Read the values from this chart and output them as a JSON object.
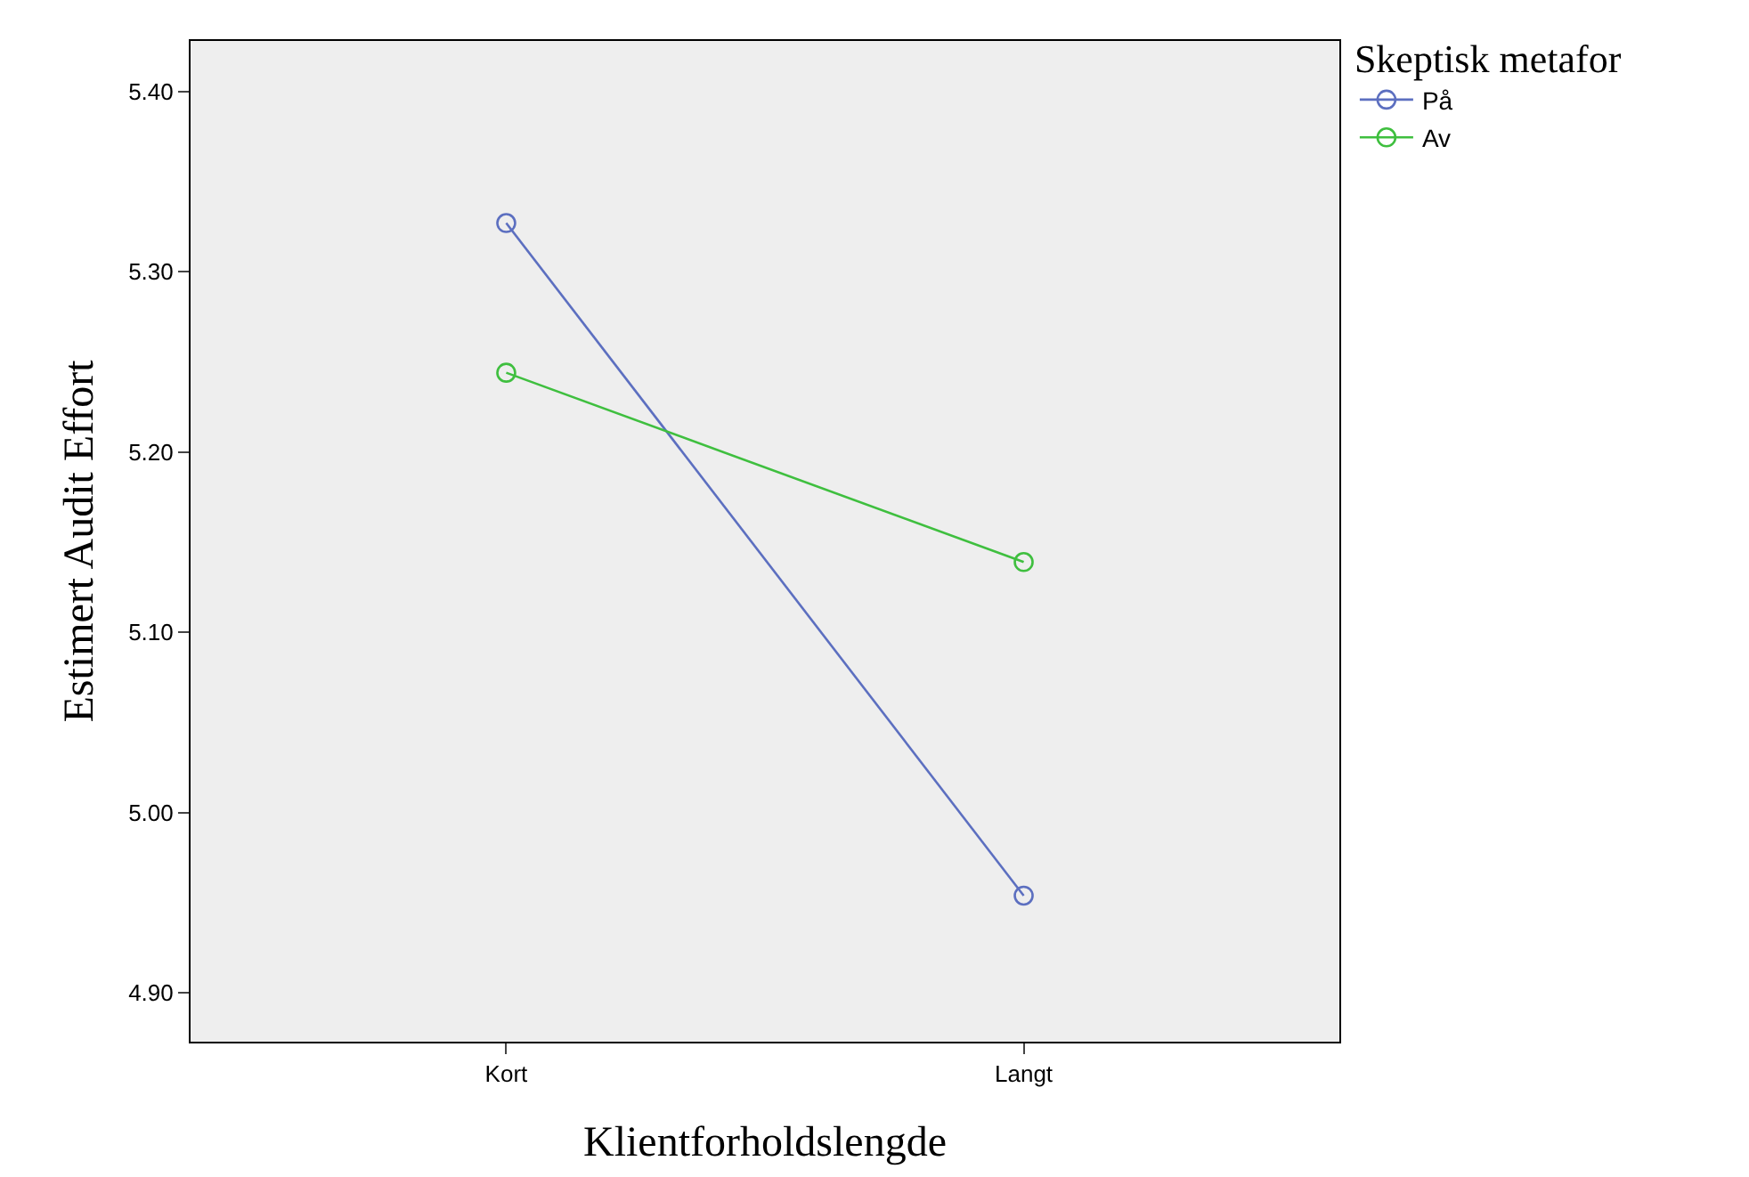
{
  "chart_data": {
    "type": "line",
    "xlabel": "Klientforholdslengde",
    "ylabel": "Estimert Audit Effort",
    "legend_title": "Skeptisk metafor",
    "categories": [
      "Kort",
      "Langt"
    ],
    "series": [
      {
        "name": "På",
        "color": "#5c6fc0",
        "values": [
          5.327,
          4.954
        ]
      },
      {
        "name": "Av",
        "color": "#3fbf3f",
        "values": [
          5.244,
          5.139
        ]
      }
    ],
    "ylim": [
      4.873,
      5.428
    ],
    "yticks": [
      {
        "value": 4.9,
        "label": "4.90"
      },
      {
        "value": 5.0,
        "label": "5.00"
      },
      {
        "value": 5.1,
        "label": "5.10"
      },
      {
        "value": 5.2,
        "label": "5.20"
      },
      {
        "value": 5.3,
        "label": "5.30"
      },
      {
        "value": 5.4,
        "label": "5.40"
      }
    ],
    "grid": false,
    "legend": "top right",
    "marker": "circle",
    "line_style": "solid"
  }
}
